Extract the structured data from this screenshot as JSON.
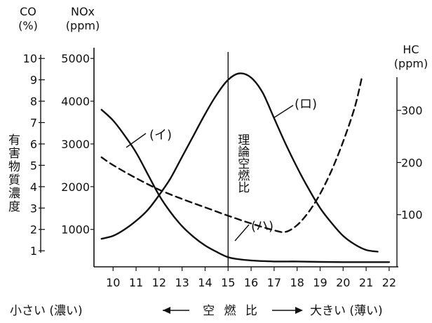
{
  "chart_data": {
    "type": "line",
    "title": "",
    "xlabel": "空 燃 比",
    "xlabel_left": "小さい (濃い)",
    "xlabel_right": "大きい (薄い)",
    "ylabel": "有害物質濃度",
    "vline_label": "理論空燃比",
    "vline_x": 15,
    "x_ticks": [
      "10",
      "11",
      "12",
      "13",
      "14",
      "15",
      "16",
      "17",
      "18",
      "19",
      "20",
      "21",
      "22"
    ],
    "xlim": [
      9.2,
      22.4
    ],
    "axes": {
      "co": {
        "title_line1": "CO",
        "title_line2": "(%)",
        "ticks": [
          "1",
          "2",
          "3",
          "4",
          "5",
          "6",
          "7",
          "8",
          "9",
          "10"
        ],
        "range": [
          0.25,
          10.5
        ]
      },
      "nox": {
        "title_line1": "NOx",
        "title_line2": "(ppm)",
        "ticks": [
          "1000",
          "2000",
          "3000",
          "4000",
          "5000"
        ],
        "range": [
          125,
          5250
        ]
      },
      "hc": {
        "title_line1": "HC",
        "title_line2": "(ppm)",
        "ticks": [
          "100",
          "200",
          "300"
        ],
        "range": [
          0,
          420
        ]
      }
    },
    "series": [
      {
        "name": "(イ)",
        "axis": "co",
        "style": "solid",
        "x": [
          9.5,
          10.0,
          10.5,
          11.0,
          11.5,
          12.0,
          12.5,
          13.0,
          13.5,
          14.0,
          14.5,
          15.0,
          15.5,
          16.0,
          17.0,
          18.0,
          19.0,
          20.0,
          21.0,
          22.0
        ],
        "y": [
          7.6,
          7.1,
          6.4,
          5.6,
          4.6,
          3.6,
          2.8,
          2.15,
          1.65,
          1.25,
          0.95,
          0.7,
          0.6,
          0.55,
          0.5,
          0.5,
          0.48,
          0.47,
          0.47,
          0.47
        ]
      },
      {
        "name": "(ロ)",
        "axis": "nox",
        "style": "solid",
        "x": [
          9.5,
          10.0,
          10.5,
          11.0,
          11.5,
          12.0,
          12.5,
          13.0,
          13.5,
          14.0,
          14.5,
          15.0,
          15.5,
          16.0,
          16.5,
          17.0,
          17.5,
          18.0,
          18.5,
          19.0,
          19.5,
          20.0,
          20.5,
          21.0,
          21.5
        ],
        "y": [
          780,
          850,
          1000,
          1200,
          1450,
          1800,
          2200,
          2700,
          3200,
          3700,
          4150,
          4500,
          4650,
          4550,
          4200,
          3600,
          3000,
          2450,
          1950,
          1500,
          1150,
          850,
          650,
          520,
          480
        ]
      },
      {
        "name": "(ハ)",
        "axis": "hc",
        "style": "dashed",
        "x": [
          9.5,
          10.0,
          11.0,
          12.0,
          13.0,
          14.0,
          15.0,
          16.0,
          17.0,
          17.5,
          18.0,
          18.5,
          19.0,
          19.5,
          20.0,
          20.5,
          20.8
        ],
        "y": [
          210,
          195,
          170,
          148,
          130,
          114,
          98,
          83,
          70,
          67,
          80,
          105,
          140,
          185,
          240,
          305,
          360
        ]
      }
    ],
    "series_labels": [
      {
        "series": "(イ)",
        "text": "(イ)"
      },
      {
        "series": "(ロ)",
        "text": "(ロ)"
      },
      {
        "series": "(ハ)",
        "text": "(ハ)"
      }
    ]
  }
}
